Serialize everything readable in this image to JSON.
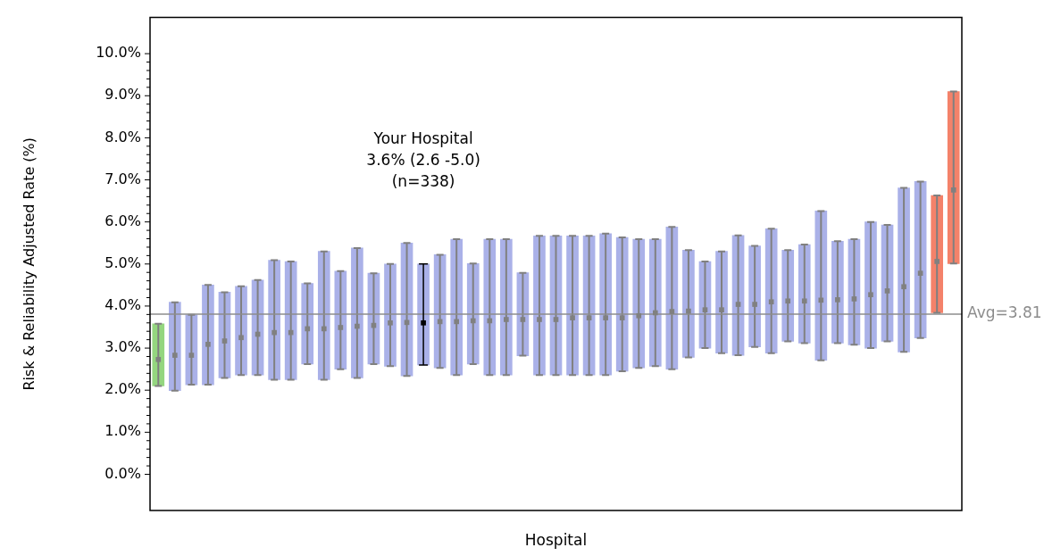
{
  "chart_data": {
    "type": "bar",
    "title": null,
    "xlabel": "Hospital",
    "ylabel": "Risk & Reliability Adjusted Rate (%)",
    "categories": [
      null,
      null,
      null,
      null,
      null,
      null,
      null,
      null,
      null,
      null,
      null,
      null,
      null,
      null,
      null,
      null,
      null,
      null,
      null,
      null,
      null,
      null,
      null,
      null,
      null,
      null,
      null,
      null,
      null,
      null,
      null,
      null,
      null,
      null,
      null,
      null,
      null,
      null,
      null,
      null,
      null,
      null,
      null,
      null,
      null,
      null,
      null,
      null,
      null
    ],
    "series": [
      {
        "base": [
          2.1,
          1.99,
          2.13,
          2.13,
          2.29,
          2.36,
          2.36,
          2.25,
          2.25,
          2.62,
          2.25,
          2.5,
          2.29,
          2.62,
          2.57,
          2.34,
          2.6,
          2.53,
          2.36,
          2.62,
          2.36,
          2.36,
          2.82,
          2.36,
          2.36,
          2.36,
          2.36,
          2.36,
          2.45,
          2.53,
          2.57,
          2.5,
          2.78,
          3.0,
          2.88,
          2.83,
          3.03,
          2.88,
          3.16,
          3.12,
          2.71,
          3.12,
          3.08,
          3.0,
          3.16,
          2.91,
          3.24,
          3.84,
          5.01
        ],
        "values": [
          1.48,
          2.1,
          1.66,
          2.37,
          2.04,
          2.11,
          2.26,
          2.84,
          2.81,
          1.92,
          3.05,
          2.33,
          3.09,
          2.16,
          2.43,
          3.16,
          2.4,
          2.69,
          3.23,
          2.39,
          3.23,
          3.23,
          1.97,
          3.31,
          3.31,
          3.31,
          3.31,
          3.36,
          3.18,
          3.06,
          3.02,
          3.38,
          2.55,
          2.06,
          2.42,
          2.85,
          2.4,
          2.96,
          2.17,
          2.34,
          3.55,
          2.42,
          2.51,
          3.0,
          2.77,
          3.9,
          3.72,
          2.79,
          4.09
        ],
        "errors": [
          [
            2.1,
            3.58
          ],
          [
            1.99,
            4.09
          ],
          [
            2.13,
            3.79
          ],
          [
            2.13,
            4.5
          ],
          [
            2.29,
            4.33
          ],
          [
            2.36,
            4.47
          ],
          [
            2.36,
            4.62
          ],
          [
            2.25,
            5.09
          ],
          [
            2.25,
            5.06
          ],
          [
            2.62,
            4.54
          ],
          [
            2.25,
            5.3
          ],
          [
            2.5,
            4.83
          ],
          [
            2.29,
            5.38
          ],
          [
            2.62,
            4.78
          ],
          [
            2.57,
            5.0
          ],
          [
            2.34,
            5.5
          ],
          null,
          [
            2.53,
            5.22
          ],
          [
            2.36,
            5.59
          ],
          [
            2.62,
            5.01
          ],
          [
            2.36,
            5.59
          ],
          [
            2.36,
            5.59
          ],
          [
            2.82,
            4.79
          ],
          [
            2.36,
            5.67
          ],
          [
            2.36,
            5.67
          ],
          [
            2.36,
            5.67
          ],
          [
            2.36,
            5.67
          ],
          [
            2.36,
            5.72
          ],
          [
            2.45,
            5.63
          ],
          [
            2.53,
            5.59
          ],
          [
            2.57,
            5.59
          ],
          [
            2.5,
            5.88
          ],
          [
            2.78,
            5.33
          ],
          [
            3.0,
            5.06
          ],
          [
            2.88,
            5.3
          ],
          [
            2.83,
            5.68
          ],
          [
            3.03,
            5.43
          ],
          [
            2.88,
            5.84
          ],
          [
            3.16,
            5.33
          ],
          [
            3.12,
            5.46
          ],
          [
            2.71,
            6.26
          ],
          [
            3.12,
            5.54
          ],
          [
            3.08,
            5.59
          ],
          [
            3.0,
            6.0
          ],
          [
            3.16,
            5.93
          ],
          [
            2.91,
            6.81
          ],
          [
            3.24,
            6.96
          ],
          [
            3.84,
            6.63
          ],
          [
            5.01,
            9.1
          ]
        ],
        "colors": [
          "#94d67f",
          "#aab1e8",
          "#aab1e8",
          "#aab1e8",
          "#aab1e8",
          "#aab1e8",
          "#aab1e8",
          "#aab1e8",
          "#aab1e8",
          "#aab1e8",
          "#aab1e8",
          "#aab1e8",
          "#aab1e8",
          "#aab1e8",
          "#aab1e8",
          "#aab1e8",
          "#aab1e8",
          "#aab1e8",
          "#aab1e8",
          "#aab1e8",
          "#aab1e8",
          "#aab1e8",
          "#aab1e8",
          "#aab1e8",
          "#aab1e8",
          "#aab1e8",
          "#aab1e8",
          "#aab1e8",
          "#aab1e8",
          "#aab1e8",
          "#aab1e8",
          "#aab1e8",
          "#aab1e8",
          "#aab1e8",
          "#aab1e8",
          "#aab1e8",
          "#aab1e8",
          "#aab1e8",
          "#aab1e8",
          "#aab1e8",
          "#aab1e8",
          "#aab1e8",
          "#aab1e8",
          "#aab1e8",
          "#aab1e8",
          "#aab1e8",
          "#aab1e8",
          "#f4826a",
          "#f4826a"
        ]
      },
      {
        "type": "scatter",
        "values": [
          2.73,
          2.83,
          2.83,
          3.09,
          3.17,
          3.25,
          3.33,
          3.37,
          3.37,
          3.46,
          3.46,
          3.49,
          3.52,
          3.54,
          3.6,
          3.61,
          3.6,
          3.63,
          3.63,
          3.65,
          3.65,
          3.68,
          3.68,
          3.68,
          3.68,
          3.72,
          3.72,
          3.72,
          3.72,
          3.77,
          3.84,
          3.87,
          3.88,
          3.91,
          3.91,
          4.04,
          4.04,
          4.1,
          4.12,
          4.12,
          4.14,
          4.15,
          4.17,
          4.27,
          4.36,
          4.46,
          4.78,
          5.06,
          6.76
        ],
        "colors": [
          "#808080",
          "#808080",
          "#808080",
          "#808080",
          "#808080",
          "#808080",
          "#808080",
          "#808080",
          "#808080",
          "#808080",
          "#808080",
          "#808080",
          "#808080",
          "#808080",
          "#808080",
          "#808080",
          "#000000",
          "#808080",
          "#808080",
          "#808080",
          "#808080",
          "#808080",
          "#808080",
          "#808080",
          "#808080",
          "#808080",
          "#808080",
          "#808080",
          "#808080",
          "#808080",
          "#808080",
          "#808080",
          "#808080",
          "#808080",
          "#808080",
          "#808080",
          "#808080",
          "#808080",
          "#808080",
          "#808080",
          "#808080",
          "#808080",
          "#808080",
          "#808080",
          "#808080",
          "#808080",
          "#808080",
          "#808080",
          "#808080"
        ],
        "errors": [
          null,
          null,
          null,
          null,
          null,
          null,
          null,
          null,
          null,
          null,
          null,
          null,
          null,
          null,
          null,
          null,
          [
            2.6,
            5.0
          ],
          null,
          null,
          null,
          null,
          null,
          null,
          null,
          null,
          null,
          null,
          null,
          null,
          null,
          null,
          null,
          null,
          null,
          null,
          null,
          null,
          null,
          null,
          null,
          null,
          null,
          null,
          null,
          null,
          null,
          null,
          null,
          null
        ]
      }
    ],
    "marker": "square",
    "ylim": [
      -0.86,
      10.86
    ],
    "yticks": [
      {
        "value": 0,
        "label": "0.0%"
      },
      {
        "value": 0.2,
        "label": null
      },
      {
        "value": 0.4,
        "label": null
      },
      {
        "value": 0.6,
        "label": null
      },
      {
        "value": 0.8,
        "label": null
      },
      {
        "value": 1,
        "label": "1.0%"
      },
      {
        "value": 1.2,
        "label": null
      },
      {
        "value": 1.4,
        "label": null
      },
      {
        "value": 1.6,
        "label": null
      },
      {
        "value": 1.8,
        "label": null
      },
      {
        "value": 2,
        "label": "2.0%"
      },
      {
        "value": 2.2,
        "label": null
      },
      {
        "value": 2.4,
        "label": null
      },
      {
        "value": 2.6,
        "label": null
      },
      {
        "value": 2.8,
        "label": null
      },
      {
        "value": 3,
        "label": "3.0%"
      },
      {
        "value": 3.2,
        "label": null
      },
      {
        "value": 3.4,
        "label": null
      },
      {
        "value": 3.6,
        "label": null
      },
      {
        "value": 3.8,
        "label": null
      },
      {
        "value": 4,
        "label": "4.0%"
      },
      {
        "value": 4.2,
        "label": null
      },
      {
        "value": 4.4,
        "label": null
      },
      {
        "value": 4.6,
        "label": null
      },
      {
        "value": 4.8,
        "label": null
      },
      {
        "value": 5,
        "label": "5.0%"
      },
      {
        "value": 5.2,
        "label": null
      },
      {
        "value": 5.4,
        "label": null
      },
      {
        "value": 5.6,
        "label": null
      },
      {
        "value": 5.8,
        "label": null
      },
      {
        "value": 6,
        "label": "6.0%"
      },
      {
        "value": 6.2,
        "label": null
      },
      {
        "value": 6.4,
        "label": null
      },
      {
        "value": 6.6,
        "label": null
      },
      {
        "value": 6.8,
        "label": null
      },
      {
        "value": 7,
        "label": "7.0%"
      },
      {
        "value": 7.2,
        "label": null
      },
      {
        "value": 7.4,
        "label": null
      },
      {
        "value": 7.6,
        "label": null
      },
      {
        "value": 7.8,
        "label": null
      },
      {
        "value": 8,
        "label": "8.0%"
      },
      {
        "value": 8.2,
        "label": null
      },
      {
        "value": 8.4,
        "label": null
      },
      {
        "value": 8.6,
        "label": null
      },
      {
        "value": 8.8,
        "label": null
      },
      {
        "value": 9,
        "label": "9.0%"
      },
      {
        "value": 9.2,
        "label": null
      },
      {
        "value": 9.4,
        "label": null
      },
      {
        "value": 9.6,
        "label": null
      },
      {
        "value": 9.8,
        "label": null
      },
      {
        "value": 10,
        "label": "10.0%"
      }
    ],
    "ref_lines": [
      {
        "axis": "y",
        "value": 3.81,
        "label": "Avg=3.81",
        "color": "#8c8c8c"
      }
    ],
    "annotations": [
      "Your Hospital",
      "3.6% (2.6 -5.0)",
      "(n=338)"
    ],
    "tick_labels": "y",
    "grid": false,
    "legend": false
  }
}
